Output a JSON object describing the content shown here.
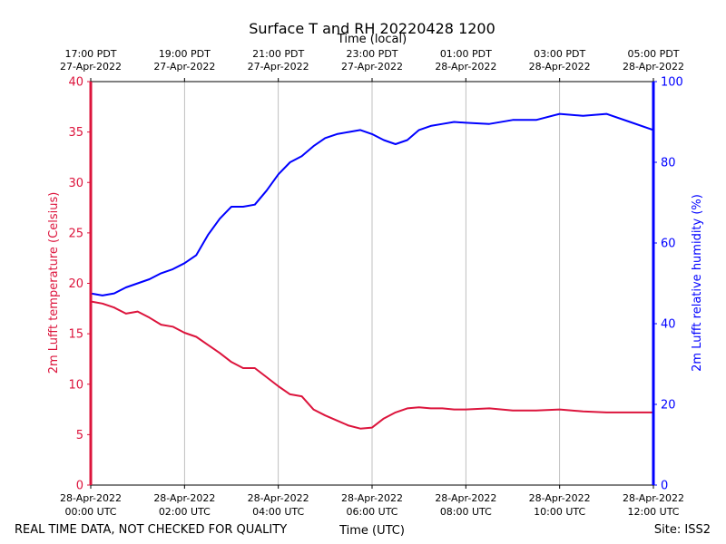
{
  "chart_data": {
    "type": "line",
    "title": "Surface T and RH 20220428 1200",
    "top_axis_title": "Time (local)",
    "xlabel": "Time (UTC)",
    "ylabel_left": "2m Lufft temperature (Celsius)",
    "ylabel_right": "2m Lufft relative humidity (%)",
    "ylim_left": [
      0,
      40
    ],
    "ylim_right": [
      0,
      100
    ],
    "xlim_hours": [
      0,
      12
    ],
    "grid": "vertical",
    "footer_left": "REAL TIME DATA, NOT CHECKED FOR QUALITY",
    "footer_right": "Site: ISS2",
    "left_ticks": [
      "0",
      "5",
      "10",
      "15",
      "20",
      "25",
      "30",
      "35",
      "40"
    ],
    "right_ticks": [
      "0",
      "20",
      "40",
      "60",
      "80",
      "100"
    ],
    "bottom_ticks": [
      {
        "hour": 0,
        "date": "28-Apr-2022",
        "time": "00:00 UTC"
      },
      {
        "hour": 2,
        "date": "28-Apr-2022",
        "time": "02:00 UTC"
      },
      {
        "hour": 4,
        "date": "28-Apr-2022",
        "time": "04:00 UTC"
      },
      {
        "hour": 6,
        "date": "28-Apr-2022",
        "time": "06:00 UTC"
      },
      {
        "hour": 8,
        "date": "28-Apr-2022",
        "time": "08:00 UTC"
      },
      {
        "hour": 10,
        "date": "28-Apr-2022",
        "time": "10:00 UTC"
      },
      {
        "hour": 12,
        "date": "28-Apr-2022",
        "time": "12:00 UTC"
      }
    ],
    "top_ticks": [
      {
        "hour": 0,
        "time": "17:00 PDT",
        "date": "27-Apr-2022"
      },
      {
        "hour": 2,
        "time": "19:00 PDT",
        "date": "27-Apr-2022"
      },
      {
        "hour": 4,
        "time": "21:00 PDT",
        "date": "27-Apr-2022"
      },
      {
        "hour": 6,
        "time": "23:00 PDT",
        "date": "27-Apr-2022"
      },
      {
        "hour": 8,
        "time": "01:00 PDT",
        "date": "28-Apr-2022"
      },
      {
        "hour": 10,
        "time": "03:00 PDT",
        "date": "28-Apr-2022"
      },
      {
        "hour": 12,
        "time": "05:00 PDT",
        "date": "28-Apr-2022"
      }
    ],
    "series": [
      {
        "name": "2m Lufft temperature",
        "axis": "left",
        "color": "#dc143c",
        "x": [
          0,
          0.25,
          0.5,
          0.75,
          1.0,
          1.25,
          1.5,
          1.75,
          2.0,
          2.25,
          2.5,
          2.75,
          3.0,
          3.25,
          3.5,
          3.75,
          4.0,
          4.25,
          4.5,
          4.75,
          5.0,
          5.25,
          5.5,
          5.75,
          6.0,
          6.25,
          6.5,
          6.75,
          7.0,
          7.25,
          7.5,
          7.75,
          8.0,
          8.5,
          9.0,
          9.5,
          10.0,
          10.5,
          11.0,
          11.5,
          12.0
        ],
        "y": [
          18.2,
          18.0,
          17.6,
          17.0,
          17.2,
          16.6,
          15.9,
          15.7,
          15.1,
          14.7,
          13.9,
          13.1,
          12.2,
          11.6,
          11.6,
          10.7,
          9.8,
          9.0,
          8.8,
          7.5,
          6.9,
          6.4,
          5.9,
          5.6,
          5.7,
          6.6,
          7.2,
          7.6,
          7.7,
          7.6,
          7.6,
          7.5,
          7.5,
          7.6,
          7.4,
          7.4,
          7.5,
          7.3,
          7.2,
          7.2,
          7.2
        ]
      },
      {
        "name": "2m Lufft relative humidity",
        "axis": "right",
        "color": "#0000ff",
        "x": [
          0,
          0.25,
          0.5,
          0.75,
          1.0,
          1.25,
          1.5,
          1.75,
          2.0,
          2.25,
          2.5,
          2.75,
          3.0,
          3.25,
          3.5,
          3.75,
          4.0,
          4.25,
          4.5,
          4.75,
          5.0,
          5.25,
          5.5,
          5.75,
          6.0,
          6.25,
          6.5,
          6.75,
          7.0,
          7.25,
          7.5,
          7.75,
          8.0,
          8.5,
          9.0,
          9.5,
          10.0,
          10.5,
          11.0,
          11.5,
          12.0
        ],
        "y": [
          47.5,
          47.0,
          47.5,
          49.0,
          50.0,
          51.0,
          52.5,
          53.5,
          55.0,
          57.0,
          62.0,
          66.0,
          69.0,
          69.0,
          69.5,
          73.0,
          77.0,
          80.0,
          81.5,
          84.0,
          86.0,
          87.0,
          87.5,
          88.0,
          87.0,
          85.5,
          84.5,
          85.5,
          88.0,
          89.0,
          89.5,
          90.0,
          89.8,
          89.5,
          90.5,
          90.5,
          92.0,
          91.5,
          92.0,
          90.0,
          88.0
        ]
      }
    ]
  }
}
